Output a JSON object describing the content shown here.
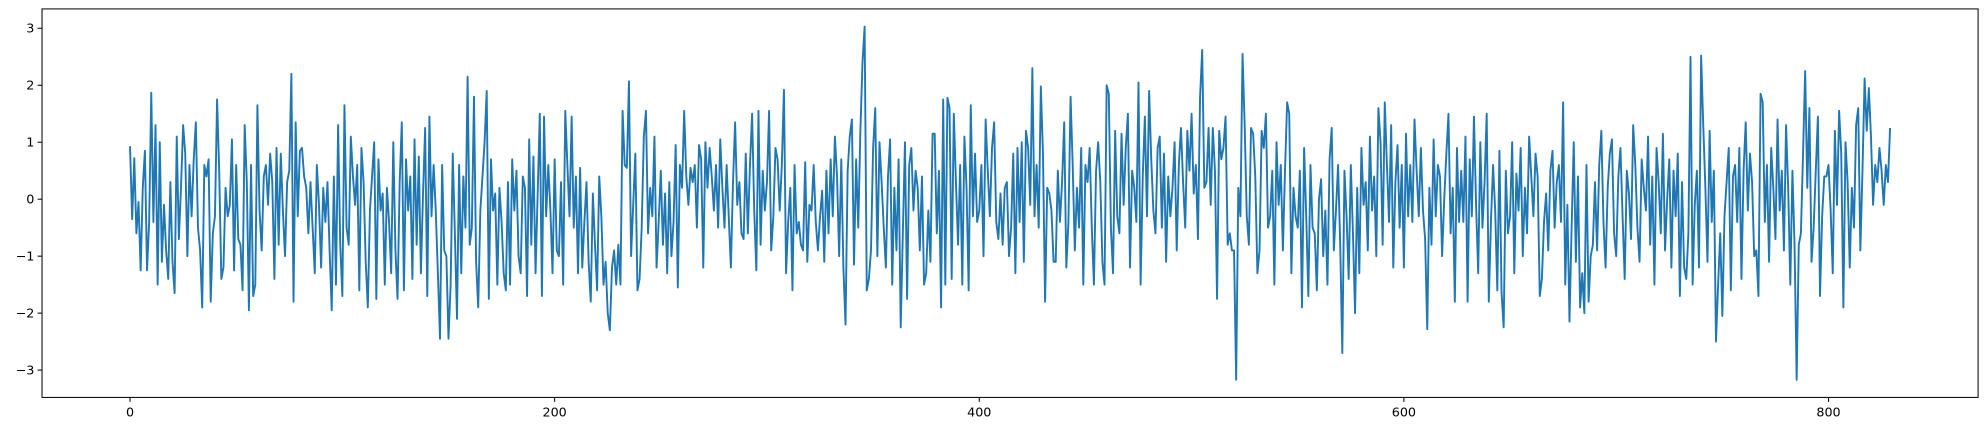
{
  "chart_data": {
    "type": "line",
    "series": [
      {
        "color": "#1f77b4",
        "values": [
          0.93,
          -0.35,
          0.72,
          -0.6,
          -0.05,
          -1.25,
          0.2,
          0.85,
          -1.25,
          -0.4,
          1.87,
          -0.4,
          1.3,
          -1.5,
          1.0,
          -1.1,
          -0.1,
          -0.9,
          -1.4,
          0.3,
          -1.1,
          -1.65,
          1.1,
          -0.7,
          0.2,
          1.3,
          0.8,
          -1.0,
          0.6,
          -0.3,
          0.7,
          1.35,
          -0.5,
          -0.9,
          -1.9,
          0.6,
          0.4,
          0.7,
          -1.8,
          -0.6,
          -0.3,
          1.75,
          0.5,
          -1.4,
          -1.2,
          0.2,
          -0.3,
          -0.1,
          1.05,
          -1.25,
          0.6,
          -0.7,
          -0.8,
          -1.6,
          1.3,
          0.3,
          -1.95,
          0.6,
          -1.7,
          -1.5,
          1.65,
          -0.2,
          -0.9,
          0.4,
          0.6,
          -0.1,
          0.8,
          0.3,
          -1.4,
          0.9,
          -0.8,
          0.8,
          -0.2,
          -1.0,
          0.3,
          0.5,
          2.2,
          -1.8,
          1.35,
          -0.3,
          0.85,
          0.9,
          0.4,
          0.2,
          -0.6,
          0.3,
          -0.5,
          -1.3,
          0.6,
          -0.1,
          -1.2,
          0.2,
          -0.4,
          0.3,
          -0.9,
          -1.95,
          0.4,
          -1.5,
          1.3,
          -0.8,
          -1.7,
          1.65,
          -0.5,
          -0.8,
          1.1,
          0.4,
          -0.1,
          0.6,
          -1.6,
          0.9,
          0.3,
          -1.1,
          -1.9,
          -0.2,
          0.4,
          1.0,
          -1.75,
          0.7,
          -0.2,
          0.1,
          -1.5,
          0.2,
          -0.4,
          -1.3,
          1.0,
          -0.9,
          -1.75,
          0.3,
          1.35,
          -1.6,
          0.7,
          -0.2,
          0.4,
          -1.4,
          1.05,
          -0.8,
          0.75,
          -1.3,
          0.1,
          1.25,
          -1.7,
          1.45,
          -0.3,
          0.6,
          -0.2,
          -1.3,
          -2.45,
          0.6,
          -0.9,
          -1.0,
          -2.45,
          -1.5,
          0.8,
          -0.6,
          -2.1,
          0.6,
          -1.3,
          0.4,
          -0.5,
          2.15,
          -0.8,
          -0.5,
          1.8,
          -1.1,
          -1.9,
          -0.2,
          0.4,
          1.0,
          1.9,
          -1.75,
          0.7,
          -0.2,
          0.1,
          -1.5,
          0.2,
          -0.4,
          -1.3,
          -1.6,
          0.3,
          -1.5,
          0.7,
          -0.2,
          0.5,
          -1.0,
          -1.3,
          0.4,
          0.2,
          -1.7,
          1.05,
          -0.8,
          0.75,
          -1.3,
          0.1,
          1.5,
          -1.7,
          1.45,
          -0.3,
          0.6,
          -0.2,
          -1.3,
          0.7,
          -0.9,
          -1.0,
          0.3,
          -1.5,
          1.55,
          0.6,
          -0.3,
          1.45,
          -0.5,
          0.4,
          -1.3,
          0.55,
          -1.2,
          -0.4,
          0.3,
          -1.1,
          -1.8,
          0.1,
          -0.8,
          -1.6,
          0.4,
          -0.3,
          -1.5,
          -1.1,
          -2.0,
          -2.3,
          -1.2,
          -0.9,
          -1.5,
          -0.8,
          -1.5,
          1.55,
          0.6,
          0.55,
          2.07,
          -1.0,
          -0.1,
          0.8,
          -1.6,
          -1.4,
          -0.5,
          1.1,
          1.55,
          -0.6,
          0.2,
          -0.3,
          1.1,
          -1.2,
          -0.4,
          0.5,
          -0.8,
          0.1,
          -1.3,
          0.3,
          -1.0,
          -0.4,
          0.95,
          -1.55,
          0.6,
          0.2,
          1.55,
          0.4,
          -0.1,
          0.55,
          0.3,
          0.6,
          -0.5,
          0.95,
          0.7,
          -1.2,
          1.0,
          0.2,
          0.9,
          0.4,
          -0.2,
          0.6,
          -0.5,
          1.05,
          0.2,
          -0.5,
          0.6,
          -0.3,
          -1.2,
          0.3,
          1.35,
          -0.1,
          0.3,
          -0.6,
          -0.7,
          0.8,
          -0.6,
          0.6,
          1.5,
          -0.2,
          -1.25,
          1.55,
          -0.8,
          0.5,
          -0.2,
          0.3,
          1.55,
          -0.9,
          -0.3,
          0.9,
          0.7,
          -0.2,
          0.6,
          1.92,
          -1.3,
          -0.4,
          0.2,
          -1.6,
          0.6,
          -0.6,
          -0.4,
          -0.8,
          -0.9,
          0.65,
          -1.1,
          -0.1,
          -0.2,
          0.6,
          -0.4,
          -0.9,
          -0.3,
          0.15,
          -1.1,
          0.5,
          -0.6,
          0.7,
          -0.3,
          1.1,
          0.4,
          -1.0,
          0.7,
          -1.2,
          -2.2,
          0.5,
          1.1,
          1.4,
          -1.15,
          0.7,
          -0.5,
          1.2,
          2.4,
          3.03,
          -1.6,
          -1.4,
          -0.9,
          0.9,
          1.6,
          -1.0,
          1.0,
          0.3,
          -0.5,
          -1.2,
          0.4,
          1.05,
          -1.5,
          0.2,
          -0.9,
          0.7,
          -2.25,
          -0.6,
          1.0,
          -1.75,
          0.6,
          0.9,
          -0.2,
          0.5,
          0.2,
          -0.9,
          0.4,
          -1.5,
          -1.3,
          -0.2,
          -1.1,
          1.15,
          1.15,
          -0.6,
          0.5,
          -1.9,
          1.75,
          -1.5,
          1.78,
          1.6,
          -1.4,
          1.5,
          0.3,
          -0.8,
          0.6,
          -1.5,
          1.1,
          0.2,
          -1.6,
          1.65,
          -0.3,
          0.8,
          -0.4,
          -0.2,
          0.6,
          -1.0,
          1.4,
          0.5,
          -0.3,
          0.9,
          1.35,
          -0.4,
          -0.7,
          0.1,
          -0.8,
          0.2,
          0.3,
          -1.0,
          -0.5,
          0.8,
          -1.3,
          0.9,
          -0.4,
          1.0,
          -1.1,
          1.2,
          0.9,
          -0.1,
          2.3,
          -0.3,
          0.6,
          -0.5,
          1.98,
          0.8,
          -1.8,
          0.2,
          0.1,
          -0.2,
          -1.1,
          -1.1,
          0.5,
          -0.4,
          0.3,
          1.35,
          -1.2,
          -0.4,
          1.8,
          0.6,
          -0.9,
          0.2,
          -0.5,
          0.9,
          -1.5,
          0.6,
          0.3,
          0.9,
          -0.5,
          -1.5,
          0.5,
          1.0,
          0.3,
          -1.1,
          -1.5,
          2.0,
          1.85,
          -0.5,
          -1.3,
          1.2,
          -0.3,
          -0.6,
          1.15,
          -0.1,
          0.9,
          1.5,
          -1.2,
          0.5,
          0.2,
          -0.4,
          2.05,
          -1.5,
          0.4,
          1.45,
          -0.3,
          1.9,
          0.7,
          -0.2,
          -0.6,
          0.9,
          1.1,
          -0.5,
          0.8,
          -1.1,
          0.4,
          -0.3,
          0.2,
          1.0,
          -0.9,
          0.6,
          1.25,
          0.3,
          -0.5,
          1.2,
          0.5,
          1.5,
          0.1,
          0.6,
          -0.7,
          1.8,
          2.62,
          0.2,
          0.3,
          1.25,
          -0.1,
          1.25,
          0.5,
          -1.75,
          1.2,
          0.7,
          0.9,
          1.45,
          -0.8,
          -0.6,
          -0.9,
          -0.9,
          -3.17,
          0.2,
          -0.3,
          2.55,
          1.3,
          -0.3,
          -0.8,
          1.25,
          1.15,
          0.4,
          -1.3,
          -0.9,
          1.2,
          0.9,
          1.5,
          -0.5,
          -0.3,
          0.5,
          -1.5,
          1.0,
          -0.1,
          0.6,
          -0.9,
          0.5,
          1.7,
          1.5,
          -1.3,
          0.2,
          -0.3,
          -0.5,
          0.5,
          -1.9,
          0.9,
          -0.3,
          -1.7,
          0.6,
          -0.5,
          -0.6,
          -1.6,
          0.0,
          0.35,
          -1.0,
          -0.2,
          -1.5,
          0.7,
          1.25,
          -0.9,
          -0.2,
          0.6,
          -0.8,
          -2.7,
          0.5,
          -0.3,
          -1.4,
          0.6,
          -0.6,
          -2.0,
          0.2,
          -1.3,
          0.9,
          -0.1,
          0.3,
          -0.9,
          1.1,
          -0.2,
          0.4,
          -1.0,
          1.6,
          1.0,
          -0.8,
          1.7,
          0.6,
          -0.4,
          1.3,
          -1.2,
          0.3,
          0.95,
          -0.5,
          0.6,
          -1.2,
          1.15,
          -0.3,
          0.6,
          -0.4,
          1.4,
          0.5,
          -0.3,
          0.9,
          -0.2,
          -0.7,
          -2.28,
          0.2,
          -0.8,
          1.05,
          -0.3,
          0.6,
          0.4,
          -1.0,
          0.0,
          0.8,
          1.5,
          -0.6,
          0.2,
          -1.8,
          0.9,
          -0.4,
          0.5,
          -0.4,
          1.1,
          -1.8,
          0.7,
          -0.3,
          1.45,
          -0.1,
          -1.3,
          1.0,
          -0.5,
          0.3,
          1.5,
          -1.8,
          -0.4,
          0.6,
          -0.2,
          -1.6,
          0.85,
          -1.65,
          -2.25,
          0.5,
          -0.6,
          -0.3,
          1.0,
          -1.3,
          0.45,
          -0.2,
          0.9,
          -1.0,
          0.2,
          -0.6,
          1.1,
          0.4,
          -0.3,
          0.8,
          0.4,
          -1.7,
          -1.4,
          -0.4,
          0.1,
          -0.9,
          0.5,
          0.85,
          -0.5,
          0.3,
          0.6,
          -0.4,
          1.7,
          -1.5,
          -0.1,
          -2.15,
          -0.5,
          1.0,
          -1.1,
          0.4,
          -1.9,
          -1.3,
          -2.0,
          0.6,
          -1.8,
          -1.0,
          -0.8,
          0.3,
          -0.9,
          0.6,
          1.2,
          -0.4,
          -1.2,
          0.2,
          0.8,
          1.05,
          -0.6,
          -1.0,
          0.4,
          0.9,
          -0.3,
          -1.4,
          0.5,
          0.1,
          -0.7,
          1.3,
          0.6,
          -0.5,
          -1.1,
          0.7,
          0.2,
          -0.2,
          1.1,
          -0.8,
          0.4,
          -1.5,
          0.9,
          0.3,
          -0.6,
          1.15,
          -0.9,
          0.0,
          0.7,
          -1.2,
          0.5,
          -0.3,
          0.8,
          -1.7,
          0.3,
          -1.2,
          -1.4,
          -0.6,
          2.5,
          -1.5,
          -0.1,
          0.5,
          -1.2,
          2.52,
          1.3,
          0.2,
          -1.1,
          1.2,
          -0.4,
          0.5,
          -2.5,
          -1.5,
          -0.6,
          -2.05,
          -0.3,
          0.3,
          0.9,
          -1.6,
          0.4,
          0.6,
          -0.4,
          0.9,
          -1.4,
          0.5,
          1.35,
          -0.2,
          0.8,
          0.3,
          -1.0,
          -0.9,
          -1.7,
          1.85,
          1.7,
          -0.4,
          0.6,
          -1.1,
          0.9,
          0.2,
          -0.7,
          1.4,
          -0.2,
          0.5,
          -0.9,
          1.3,
          0.2,
          -1.5,
          0.5,
          -0.8,
          -3.17,
          -0.8,
          -0.6,
          0.8,
          2.25,
          0.2,
          1.6,
          -1.1,
          -0.5,
          0.5,
          1.45,
          -1.7,
          -0.3,
          0.4,
          0.4,
          0.6,
          -0.2,
          -1.3,
          1.2,
          -0.1,
          1.55,
          0.8,
          -1.9,
          1.0,
          0.3,
          -1.2,
          0.2,
          -0.5,
          1.3,
          1.6,
          -0.9,
          0.5,
          2.12,
          1.2,
          1.95,
          1.1,
          -0.1,
          0.6,
          0.3,
          0.9,
          0.5,
          -0.1,
          0.6,
          0.3,
          1.25
        ]
      }
    ],
    "xlim": [
      -41.45,
      870.45
    ],
    "xticks": [
      0,
      200,
      400,
      600,
      800
    ],
    "ylim": [
      -3.48,
      3.34
    ],
    "yticks": [
      {
        "value": -3,
        "label": "−3"
      },
      {
        "value": -2,
        "label": "−2"
      },
      {
        "value": -1,
        "label": "−1"
      },
      0,
      1,
      2,
      3
    ],
    "grid": false
  }
}
